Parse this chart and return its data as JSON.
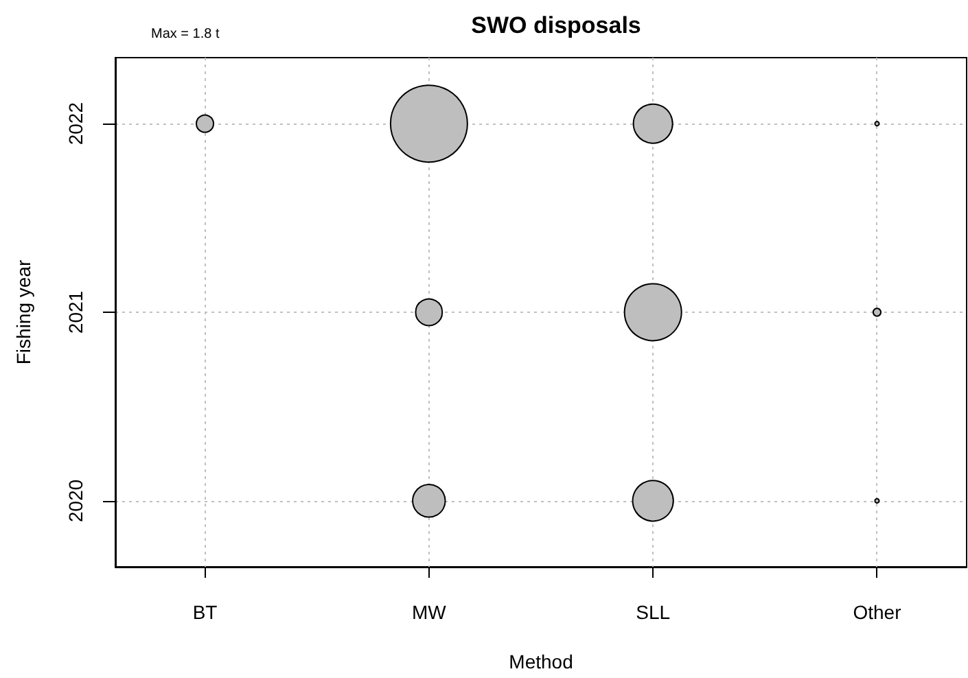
{
  "chart_data": {
    "type": "bubble",
    "title": "SWO disposals",
    "xlabel": "Method",
    "ylabel": "Fishing year",
    "annotations": [
      "Max = 1.8 t"
    ],
    "categories": [
      "BT",
      "MW",
      "SLL",
      "Other"
    ],
    "series": [
      {
        "color": "#bebebe",
        "values": [
          null,
          2020,
          2020,
          2020
        ],
        "sizes": [
          null,
          0.18,
          0.28,
          0.003
        ]
      },
      {
        "color": "#bebebe",
        "values": [
          null,
          2021,
          2021,
          2021
        ],
        "sizes": [
          null,
          0.12,
          0.55,
          0.01
        ]
      },
      {
        "color": "#bebebe",
        "values": [
          2022,
          2022,
          2022,
          2022
        ],
        "sizes": [
          0.05,
          1,
          0.26,
          0.003
        ]
      }
    ],
    "ylim": [
      2019.65,
      2022.35
    ],
    "yticks": [
      2020,
      2021,
      2022
    ],
    "grid": true,
    "marker": "circle"
  }
}
